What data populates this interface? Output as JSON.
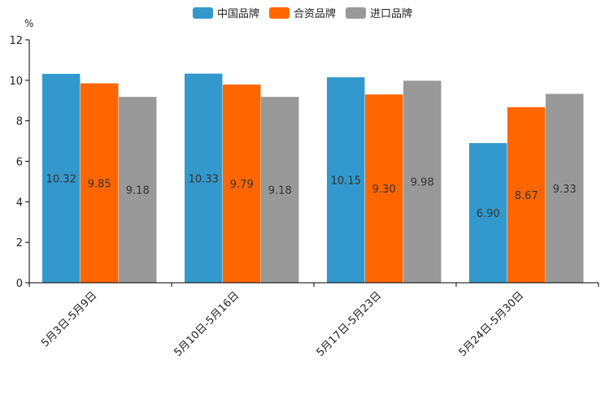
{
  "chart_data": {
    "type": "bar",
    "title": "",
    "unit": "%",
    "xlabel": "",
    "ylabel": "",
    "ylim": [
      0,
      12
    ],
    "yticks": [
      0,
      2,
      4,
      6,
      8,
      10,
      12
    ],
    "ytick_labels": [
      "0",
      "2",
      "4",
      "6",
      "8",
      "10",
      "12"
    ],
    "legend_position": "top-center",
    "categories": [
      "5月3日-5月9日",
      "5月10日-5月16日",
      "5月17日-5月23日",
      "5月24日-5月30日"
    ],
    "series": [
      {
        "name": "中国品牌",
        "color": "#3399cc",
        "values": [
          10.32,
          10.33,
          10.15,
          6.9
        ],
        "labels": [
          "10.32",
          "10.33",
          "10.15",
          "6.90"
        ]
      },
      {
        "name": "合资品牌",
        "color": "#ff6600",
        "values": [
          9.85,
          9.79,
          9.3,
          8.67
        ],
        "labels": [
          "9.85",
          "9.79",
          "9.30",
          "8.67"
        ]
      },
      {
        "name": "进口品牌",
        "color": "#999999",
        "values": [
          9.18,
          9.18,
          9.98,
          9.33
        ],
        "labels": [
          "9.18",
          "9.18",
          "9.98",
          "9.33"
        ]
      }
    ]
  }
}
